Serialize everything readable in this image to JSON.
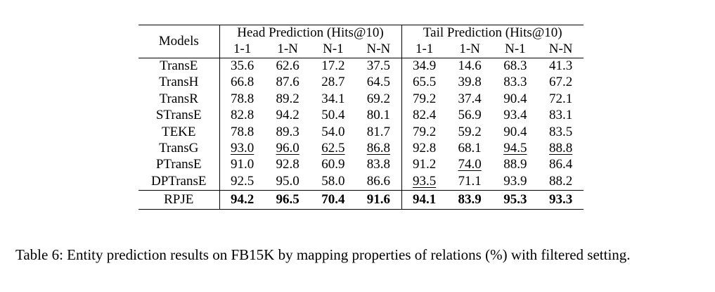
{
  "table": {
    "models_header": "Models",
    "groups": [
      {
        "label": "Head Prediction (Hits@10)"
      },
      {
        "label": "Tail Prediction (Hits@10)"
      }
    ],
    "sub_headers": [
      "1-1",
      "1-N",
      "N-1",
      "N-N",
      "1-1",
      "1-N",
      "N-1",
      "N-N"
    ],
    "rows": [
      {
        "model": "TransE",
        "values": [
          "35.6",
          "62.6",
          "17.2",
          "37.5",
          "34.9",
          "14.6",
          "68.3",
          "41.3"
        ],
        "underlined": []
      },
      {
        "model": "TransH",
        "values": [
          "66.8",
          "87.6",
          "28.7",
          "64.5",
          "65.5",
          "39.8",
          "83.3",
          "67.2"
        ],
        "underlined": []
      },
      {
        "model": "TransR",
        "values": [
          "78.8",
          "89.2",
          "34.1",
          "69.2",
          "79.2",
          "37.4",
          "90.4",
          "72.1"
        ],
        "underlined": []
      },
      {
        "model": "STransE",
        "values": [
          "82.8",
          "94.2",
          "50.4",
          "80.1",
          "82.4",
          "56.9",
          "93.4",
          "83.1"
        ],
        "underlined": []
      },
      {
        "model": "TEKE",
        "values": [
          "78.8",
          "89.3",
          "54.0",
          "81.7",
          "79.2",
          "59.2",
          "90.4",
          "83.5"
        ],
        "underlined": []
      },
      {
        "model": "TransG",
        "values": [
          "93.0",
          "96.0",
          "62.5",
          "86.8",
          "92.8",
          "68.1",
          "94.5",
          "88.8"
        ],
        "underlined": [
          0,
          1,
          2,
          3,
          6,
          7
        ]
      },
      {
        "model": "PTransE",
        "values": [
          "91.0",
          "92.8",
          "60.9",
          "83.8",
          "91.2",
          "74.0",
          "88.9",
          "86.4"
        ],
        "underlined": [
          5
        ]
      },
      {
        "model": "DPTransE",
        "values": [
          "92.5",
          "95.0",
          "58.0",
          "86.6",
          "93.5",
          "71.1",
          "93.9",
          "88.2"
        ],
        "underlined": [
          4
        ]
      }
    ],
    "highlight_row": {
      "model": "RPJE",
      "values": [
        "94.2",
        "96.5",
        "70.4",
        "91.6",
        "94.1",
        "83.9",
        "95.3",
        "93.3"
      ],
      "bold": true
    }
  },
  "caption": "Table 6: Entity prediction results on FB15K by mapping properties of relations (%) with filtered setting."
}
